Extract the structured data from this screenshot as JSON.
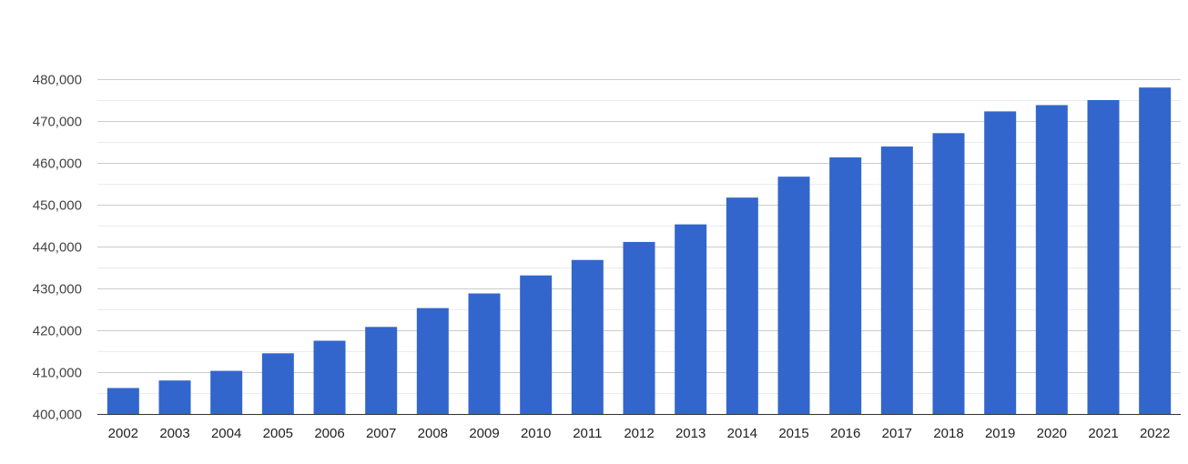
{
  "chart_data": {
    "type": "bar",
    "title": "",
    "xlabel": "",
    "ylabel": "",
    "categories": [
      "2002",
      "2003",
      "2004",
      "2005",
      "2006",
      "2007",
      "2008",
      "2009",
      "2010",
      "2011",
      "2012",
      "2013",
      "2014",
      "2015",
      "2016",
      "2017",
      "2018",
      "2019",
      "2020",
      "2021",
      "2022"
    ],
    "series": [
      {
        "values": [
          406200,
          408000,
          410300,
          414500,
          417500,
          420800,
          425300,
          428800,
          433100,
          436800,
          441100,
          445300,
          451700,
          456700,
          461300,
          463900,
          467100,
          472300,
          473800,
          475000,
          478000
        ],
        "color": "#3366cc"
      }
    ],
    "ylim": [
      400000,
      480000
    ],
    "yticks": [
      400000,
      410000,
      420000,
      430000,
      440000,
      450000,
      460000,
      470000,
      480000
    ],
    "ytick_labels": [
      "400,000",
      "410,000",
      "420,000",
      "430,000",
      "440,000",
      "450,000",
      "460,000",
      "470,000",
      "480,000"
    ],
    "grid": true,
    "minor_grid": true,
    "legend": "none"
  }
}
